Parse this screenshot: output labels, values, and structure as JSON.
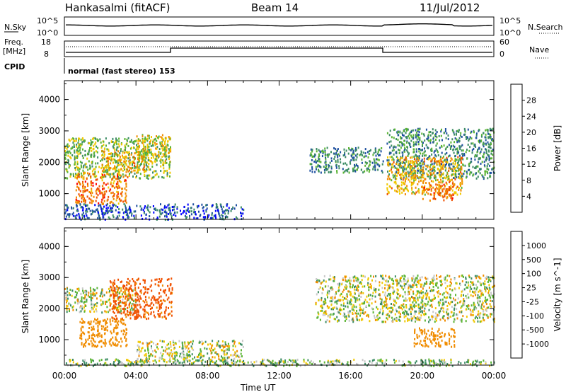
{
  "header": {
    "radar": "Hankasalmi (fitACF)",
    "beam": "Beam 14",
    "date": "11/Jul/2012"
  },
  "sky_panel": {
    "left_label": "N.Sky",
    "right_label": "N.Search",
    "left_ticks": [
      "10^5",
      "10^0"
    ],
    "right_ticks": [
      "10^5",
      "10^0"
    ]
  },
  "freq_panel": {
    "left_label_1": "Freq.",
    "left_label_2": "[MHz]",
    "left_ticks": [
      "18",
      "8"
    ],
    "right_label": "Nave",
    "right_ticks": [
      "60",
      "0"
    ],
    "cpid_label": "CPID",
    "cpid_text": "normal (fast stereo) 153"
  },
  "colors": {
    "power_scale": [
      "#0000ff",
      "#1e50a0",
      "#3c8c64",
      "#5ab432",
      "#f0c800",
      "#f08c00",
      "#f05000",
      "#ff0000"
    ],
    "velocity_scale": [
      "#ff0000",
      "#f05000",
      "#f08c00",
      "#f0c800",
      "#c8c8c8",
      "#c8c8c8",
      "#5ab432",
      "#3c8c64",
      "#1e50a0",
      "#0000ff"
    ]
  },
  "chart_data": [
    {
      "type": "heatmap",
      "name_on_plot": "",
      "xlabel": "Time UT",
      "ylabel": "Slant Range [km]",
      "colorbar_label": "Power [dB]",
      "colorbar_ticks": [
        "4",
        "8",
        "12",
        "16",
        "20",
        "24",
        "28"
      ],
      "y_ticks": [
        "1000",
        "2000",
        "3000",
        "4000"
      ],
      "ylim": [
        180,
        4600
      ],
      "xlim_hours": [
        0,
        24
      ],
      "x_ticks": [
        "00:00",
        "04:00",
        "08:00",
        "12:00",
        "16:00",
        "20:00",
        "00:00"
      ],
      "regions": [
        {
          "t0": 0.0,
          "t1": 5.9,
          "r0": 1500,
          "r1": 2800,
          "power": 14
        },
        {
          "t0": 0.6,
          "t1": 3.5,
          "r0": 700,
          "r1": 1700,
          "power": 24
        },
        {
          "t0": 2.0,
          "t1": 4.5,
          "r0": 1700,
          "r1": 2400,
          "power": 20
        },
        {
          "t0": 4.0,
          "t1": 5.9,
          "r0": 2000,
          "r1": 2900,
          "power": 18
        },
        {
          "t0": 0.0,
          "t1": 10.0,
          "r0": 200,
          "r1": 700,
          "power": 6
        },
        {
          "t0": 13.6,
          "t1": 17.8,
          "r0": 1700,
          "r1": 2500,
          "power": 10
        },
        {
          "t0": 18.0,
          "t1": 24.0,
          "r0": 1500,
          "r1": 3100,
          "power": 10
        },
        {
          "t0": 18.0,
          "t1": 22.2,
          "r0": 1000,
          "r1": 2200,
          "power": 20
        },
        {
          "t0": 20.0,
          "t1": 21.8,
          "r0": 800,
          "r1": 1400,
          "power": 24
        }
      ]
    },
    {
      "type": "heatmap",
      "xlabel": "Time UT",
      "ylabel": "Slant Range [km]",
      "colorbar_label": "Velocity [m s^-1]",
      "colorbar_ticks": [
        "-1000",
        "-500",
        "-100",
        "-25",
        "25",
        "100",
        "500",
        "1000"
      ],
      "y_ticks": [
        "1000",
        "2000",
        "3000",
        "4000"
      ],
      "ylim": [
        180,
        4600
      ],
      "xlim_hours": [
        0,
        24
      ],
      "x_ticks": [
        "00:00",
        "04:00",
        "08:00",
        "12:00",
        "16:00",
        "20:00",
        "00:00"
      ],
      "regions": [
        {
          "t0": 0.0,
          "t1": 4.0,
          "r0": 1900,
          "r1": 2700,
          "velocity": 0
        },
        {
          "t0": 0.8,
          "t1": 3.5,
          "r0": 800,
          "r1": 1700,
          "velocity": -300
        },
        {
          "t0": 2.5,
          "t1": 6.0,
          "r0": 1700,
          "r1": 3000,
          "velocity": -600
        },
        {
          "t0": 4.0,
          "t1": 10.0,
          "r0": 300,
          "r1": 1000,
          "velocity": 0
        },
        {
          "t0": 0.0,
          "t1": 24.0,
          "r0": 180,
          "r1": 400,
          "velocity": 60
        },
        {
          "t0": 14.0,
          "t1": 24.0,
          "r0": 1600,
          "r1": 3100,
          "velocity": 0
        },
        {
          "t0": 19.5,
          "t1": 21.8,
          "r0": 800,
          "r1": 1400,
          "velocity": -300
        }
      ]
    }
  ]
}
